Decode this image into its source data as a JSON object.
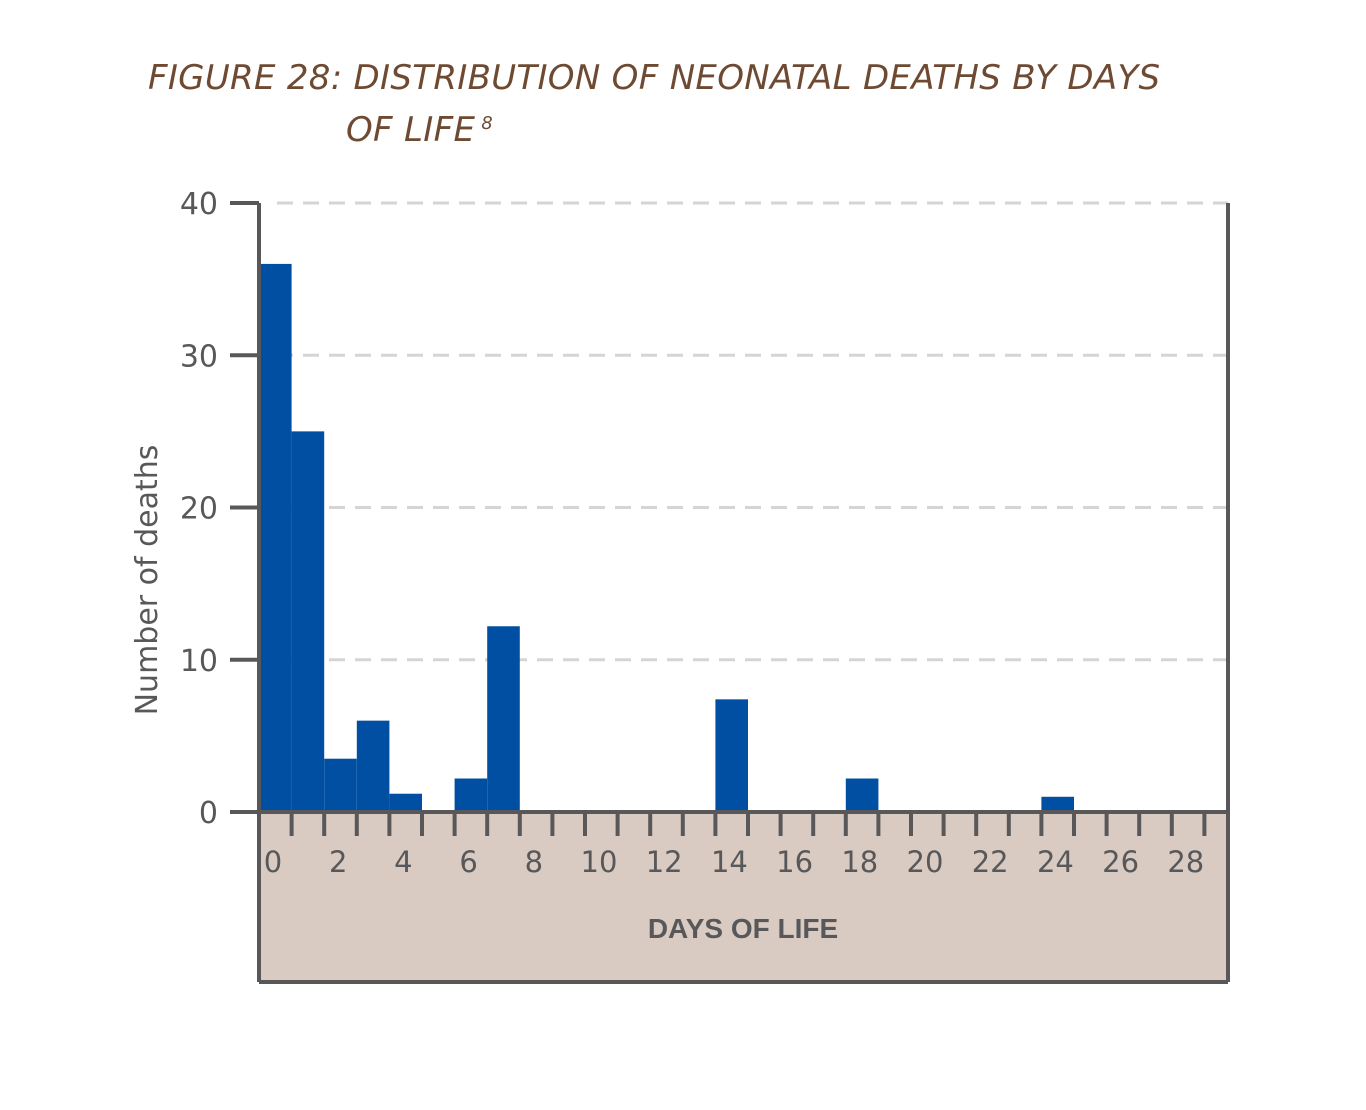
{
  "figure": {
    "title_line1": "FIGURE 28: DISTRIBUTION OF NEONATAL DEATHS BY DAYS",
    "title_line2": "OF LIFE",
    "footnote_marker": "8"
  },
  "chart_data": {
    "type": "bar",
    "title": "FIGURE 28: DISTRIBUTION OF NEONATAL DEATHS BY DAYS OF LIFE",
    "xlabel": "DAYS OF LIFE",
    "ylabel": "Number of deaths",
    "ylim": [
      0,
      40
    ],
    "yticks": [
      0,
      10,
      20,
      30,
      40
    ],
    "xticks": [
      0,
      2,
      4,
      6,
      8,
      10,
      12,
      14,
      16,
      18,
      20,
      22,
      24,
      26,
      28
    ],
    "grid": "dashed horizontal",
    "categories": [
      0,
      1,
      2,
      3,
      4,
      5,
      6,
      7,
      8,
      9,
      10,
      11,
      12,
      13,
      14,
      15,
      16,
      17,
      18,
      19,
      20,
      21,
      22,
      23,
      24,
      25,
      26,
      27,
      28,
      29
    ],
    "values": [
      36,
      25,
      3.5,
      6,
      1.2,
      0,
      2.2,
      12.2,
      0,
      0,
      0,
      0,
      0,
      0,
      7.4,
      0,
      0,
      0,
      2.2,
      0,
      0,
      0,
      0,
      0,
      1,
      0,
      0,
      0,
      0,
      0
    ],
    "colors": {
      "bar": "#004fa3",
      "axis": "#58585a",
      "grid": "#d5d5d5",
      "band": "#d9cbc2",
      "title": "#6f4a32",
      "text": "#58585a"
    }
  }
}
